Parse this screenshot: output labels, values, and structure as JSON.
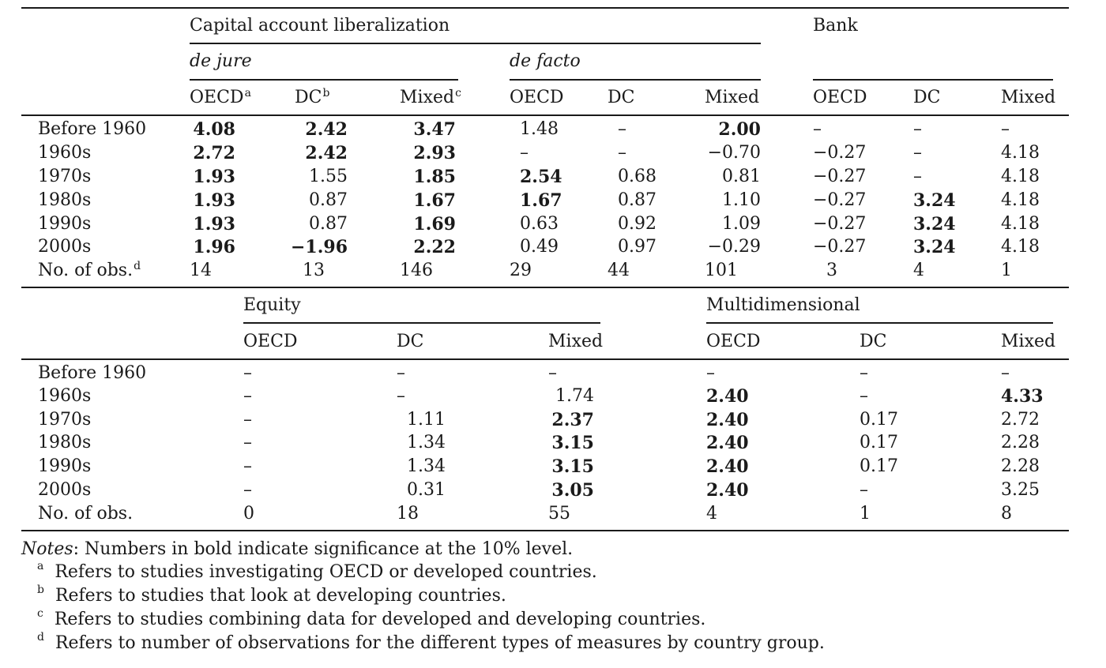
{
  "top": {
    "group1_title": "Capital account liberalization",
    "group2_title": "Bank",
    "sub_dejure": "de jure",
    "sub_defacto": "de facto",
    "columns": [
      {
        "label": "OECD",
        "sup": "a"
      },
      {
        "label": "DC",
        "sup": "b"
      },
      {
        "label": "Mixed",
        "sup": "c"
      },
      {
        "label": "OECD",
        "sup": ""
      },
      {
        "label": "DC",
        "sup": ""
      },
      {
        "label": "Mixed",
        "sup": ""
      },
      {
        "label": "OECD",
        "sup": ""
      },
      {
        "label": "DC",
        "sup": ""
      },
      {
        "label": "Mixed",
        "sup": ""
      }
    ],
    "rows": [
      {
        "label": "Before 1960",
        "sup": "",
        "cells": [
          {
            "v": "4.08",
            "b": true
          },
          {
            "v": "2.42",
            "b": true
          },
          {
            "v": "3.47",
            "b": true
          },
          {
            "v": "1.48",
            "b": false
          },
          {
            "v": "–",
            "b": false
          },
          {
            "v": "2.00",
            "b": true
          },
          {
            "v": "–",
            "b": false
          },
          {
            "v": "–",
            "b": false
          },
          {
            "v": "–",
            "b": false
          }
        ]
      },
      {
        "label": "1960s",
        "sup": "",
        "cells": [
          {
            "v": "2.72",
            "b": true
          },
          {
            "v": "2.42",
            "b": true
          },
          {
            "v": "2.93",
            "b": true
          },
          {
            "v": "–",
            "b": false
          },
          {
            "v": "–",
            "b": false
          },
          {
            "v": "−0.70",
            "b": false
          },
          {
            "v": "−0.27",
            "b": false
          },
          {
            "v": "–",
            "b": false
          },
          {
            "v": "4.18",
            "b": false
          }
        ]
      },
      {
        "label": "1970s",
        "sup": "",
        "cells": [
          {
            "v": "1.93",
            "b": true
          },
          {
            "v": "1.55",
            "b": false
          },
          {
            "v": "1.85",
            "b": true
          },
          {
            "v": "2.54",
            "b": true
          },
          {
            "v": "0.68",
            "b": false
          },
          {
            "v": "0.81",
            "b": false
          },
          {
            "v": "−0.27",
            "b": false
          },
          {
            "v": "–",
            "b": false
          },
          {
            "v": "4.18",
            "b": false
          }
        ]
      },
      {
        "label": "1980s",
        "sup": "",
        "cells": [
          {
            "v": "1.93",
            "b": true
          },
          {
            "v": "0.87",
            "b": false
          },
          {
            "v": "1.67",
            "b": true
          },
          {
            "v": "1.67",
            "b": true
          },
          {
            "v": "0.87",
            "b": false
          },
          {
            "v": "1.10",
            "b": false
          },
          {
            "v": "−0.27",
            "b": false
          },
          {
            "v": "3.24",
            "b": true
          },
          {
            "v": "4.18",
            "b": false
          }
        ]
      },
      {
        "label": "1990s",
        "sup": "",
        "cells": [
          {
            "v": "1.93",
            "b": true
          },
          {
            "v": "0.87",
            "b": false
          },
          {
            "v": "1.69",
            "b": true
          },
          {
            "v": "0.63",
            "b": false
          },
          {
            "v": "0.92",
            "b": false
          },
          {
            "v": "1.09",
            "b": false
          },
          {
            "v": "−0.27",
            "b": false
          },
          {
            "v": "3.24",
            "b": true
          },
          {
            "v": "4.18",
            "b": false
          }
        ]
      },
      {
        "label": "2000s",
        "sup": "",
        "cells": [
          {
            "v": "1.96",
            "b": true
          },
          {
            "v": "−1.96",
            "b": true
          },
          {
            "v": "2.22",
            "b": true
          },
          {
            "v": "0.49",
            "b": false
          },
          {
            "v": "0.97",
            "b": false
          },
          {
            "v": "−0.29",
            "b": false
          },
          {
            "v": "−0.27",
            "b": false
          },
          {
            "v": "3.24",
            "b": true
          },
          {
            "v": "4.18",
            "b": false
          }
        ]
      },
      {
        "label": "No. of obs.",
        "sup": "d",
        "cells": [
          {
            "v": "14",
            "b": false
          },
          {
            "v": "13",
            "b": false
          },
          {
            "v": "146",
            "b": false
          },
          {
            "v": "29",
            "b": false
          },
          {
            "v": "44",
            "b": false
          },
          {
            "v": "101",
            "b": false
          },
          {
            "v": "3",
            "b": false
          },
          {
            "v": "4",
            "b": false
          },
          {
            "v": "1",
            "b": false
          }
        ]
      }
    ]
  },
  "bottom": {
    "group1_title": "Equity",
    "group2_title": "Multidimensional",
    "columns": [
      "OECD",
      "DC",
      "Mixed",
      "OECD",
      "DC",
      "Mixed"
    ],
    "rows": [
      {
        "label": "Before 1960",
        "cells": [
          {
            "v": "–",
            "b": false
          },
          {
            "v": "–",
            "b": false
          },
          {
            "v": "–",
            "b": false
          },
          {
            "v": "–",
            "b": false
          },
          {
            "v": "–",
            "b": false
          },
          {
            "v": "–",
            "b": false
          }
        ]
      },
      {
        "label": "1960s",
        "cells": [
          {
            "v": "–",
            "b": false
          },
          {
            "v": "–",
            "b": false
          },
          {
            "v": "1.74",
            "b": false
          },
          {
            "v": "2.40",
            "b": true
          },
          {
            "v": "–",
            "b": false
          },
          {
            "v": "4.33",
            "b": true
          }
        ]
      },
      {
        "label": "1970s",
        "cells": [
          {
            "v": "–",
            "b": false
          },
          {
            "v": "1.11",
            "b": false
          },
          {
            "v": "2.37",
            "b": true
          },
          {
            "v": "2.40",
            "b": true
          },
          {
            "v": "0.17",
            "b": false
          },
          {
            "v": "2.72",
            "b": false
          }
        ]
      },
      {
        "label": "1980s",
        "cells": [
          {
            "v": "–",
            "b": false
          },
          {
            "v": "1.34",
            "b": false
          },
          {
            "v": "3.15",
            "b": true
          },
          {
            "v": "2.40",
            "b": true
          },
          {
            "v": "0.17",
            "b": false
          },
          {
            "v": "2.28",
            "b": false
          }
        ]
      },
      {
        "label": "1990s",
        "cells": [
          {
            "v": "–",
            "b": false
          },
          {
            "v": "1.34",
            "b": false
          },
          {
            "v": "3.15",
            "b": true
          },
          {
            "v": "2.40",
            "b": true
          },
          {
            "v": "0.17",
            "b": false
          },
          {
            "v": "2.28",
            "b": false
          }
        ]
      },
      {
        "label": "2000s",
        "cells": [
          {
            "v": "–",
            "b": false
          },
          {
            "v": "0.31",
            "b": false
          },
          {
            "v": "3.05",
            "b": true
          },
          {
            "v": "2.40",
            "b": true
          },
          {
            "v": "–",
            "b": false
          },
          {
            "v": "3.25",
            "b": false
          }
        ]
      },
      {
        "label": "No. of obs.",
        "cells": [
          {
            "v": "0",
            "b": false
          },
          {
            "v": "18",
            "b": false
          },
          {
            "v": "55",
            "b": false
          },
          {
            "v": "4",
            "b": false
          },
          {
            "v": "1",
            "b": false
          },
          {
            "v": "8",
            "b": false
          }
        ]
      }
    ]
  },
  "notes": {
    "label": "Notes",
    "text": ": Numbers in bold indicate significance at the 10% level.",
    "footnotes": [
      {
        "mark": "a",
        "text": "Refers to studies investigating OECD or developed countries."
      },
      {
        "mark": "b",
        "text": "Refers to studies that look at developing countries."
      },
      {
        "mark": "c",
        "text": "Refers to studies combining data for developed and developing countries."
      },
      {
        "mark": "d",
        "text": "Refers to number of observations for the different types of measures by country group."
      }
    ]
  }
}
